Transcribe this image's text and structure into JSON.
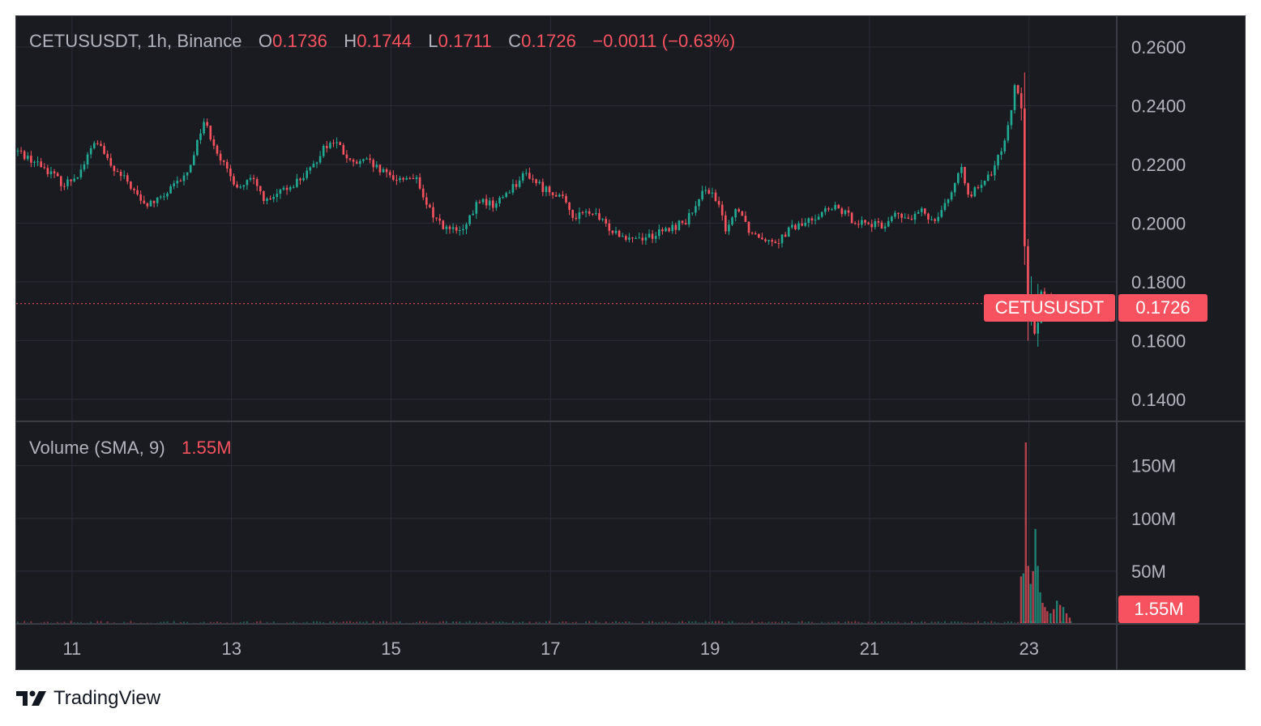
{
  "legend": {
    "symbol": "CETUSUSDT, 1h, Binance",
    "open_label": "O",
    "open_value": "0.1736",
    "high_label": "H",
    "high_value": "0.1744",
    "low_label": "L",
    "low_value": "0.1711",
    "close_label": "C",
    "close_value": "0.1726",
    "change": "−0.0011 (−0.63%)"
  },
  "volume_legend": {
    "label": "Volume (SMA, 9)",
    "value": "1.55M"
  },
  "tags": {
    "symbol": "CETUSUSDT",
    "price": "0.1726",
    "volume": "1.55M"
  },
  "footer": {
    "brand": "TradingView",
    "logo_icon": "tradingview-logo-icon"
  },
  "colors": {
    "background": "#1a1b20",
    "up": "#22ab94",
    "down": "#f7525f",
    "grid": "#2a2e39",
    "axis_text": "#b2b5be"
  },
  "chart_data": {
    "type": "candlestick",
    "symbol": "CETUSUSDT",
    "interval": "1h",
    "exchange": "Binance",
    "x_tick_labels": [
      "11",
      "13",
      "15",
      "17",
      "19",
      "21",
      "23"
    ],
    "y_tick_labels": [
      "0.2600",
      "0.2400",
      "0.2200",
      "0.2000",
      "0.1800",
      "0.1600",
      "0.1400"
    ],
    "y_ticks": [
      0.26,
      0.24,
      0.22,
      0.2,
      0.18,
      0.16,
      0.14
    ],
    "ylim": [
      0.1325,
      0.2705
    ],
    "xlim_days": [
      10.3,
      24.1
    ],
    "current_price": 0.1726,
    "close_path": [
      [
        10.32,
        0.2245
      ],
      [
        10.5,
        0.2215
      ],
      [
        10.7,
        0.218
      ],
      [
        10.9,
        0.213
      ],
      [
        11.1,
        0.2175
      ],
      [
        11.3,
        0.2285
      ],
      [
        11.5,
        0.2185
      ],
      [
        11.7,
        0.214
      ],
      [
        11.9,
        0.206
      ],
      [
        12.1,
        0.208
      ],
      [
        12.3,
        0.213
      ],
      [
        12.45,
        0.217
      ],
      [
        12.55,
        0.226
      ],
      [
        12.65,
        0.235
      ],
      [
        12.8,
        0.226
      ],
      [
        12.95,
        0.217
      ],
      [
        13.1,
        0.212
      ],
      [
        13.25,
        0.215
      ],
      [
        13.45,
        0.207
      ],
      [
        13.65,
        0.211
      ],
      [
        13.85,
        0.215
      ],
      [
        14.0,
        0.218
      ],
      [
        14.15,
        0.226
      ],
      [
        14.3,
        0.228
      ],
      [
        14.5,
        0.22
      ],
      [
        14.7,
        0.221
      ],
      [
        14.9,
        0.217
      ],
      [
        15.1,
        0.215
      ],
      [
        15.3,
        0.216
      ],
      [
        15.4,
        0.208
      ],
      [
        15.55,
        0.202
      ],
      [
        15.7,
        0.198
      ],
      [
        15.9,
        0.197
      ],
      [
        16.0,
        0.202
      ],
      [
        16.1,
        0.208
      ],
      [
        16.3,
        0.206
      ],
      [
        16.5,
        0.212
      ],
      [
        16.7,
        0.217
      ],
      [
        16.9,
        0.212
      ],
      [
        17.1,
        0.21
      ],
      [
        17.3,
        0.202
      ],
      [
        17.5,
        0.204
      ],
      [
        17.7,
        0.199
      ],
      [
        17.9,
        0.196
      ],
      [
        18.1,
        0.195
      ],
      [
        18.3,
        0.196
      ],
      [
        18.5,
        0.198
      ],
      [
        18.7,
        0.201
      ],
      [
        18.85,
        0.206
      ],
      [
        18.95,
        0.213
      ],
      [
        19.1,
        0.206
      ],
      [
        19.2,
        0.198
      ],
      [
        19.35,
        0.206
      ],
      [
        19.5,
        0.197
      ],
      [
        19.7,
        0.195
      ],
      [
        19.85,
        0.194
      ],
      [
        20.0,
        0.198
      ],
      [
        20.2,
        0.2
      ],
      [
        20.4,
        0.204
      ],
      [
        20.6,
        0.205
      ],
      [
        20.8,
        0.201
      ],
      [
        21.0,
        0.2
      ],
      [
        21.15,
        0.1985
      ],
      [
        21.3,
        0.203
      ],
      [
        21.5,
        0.201
      ],
      [
        21.65,
        0.204
      ],
      [
        21.8,
        0.201
      ],
      [
        21.95,
        0.207
      ],
      [
        22.05,
        0.212
      ],
      [
        22.15,
        0.218
      ],
      [
        22.25,
        0.21
      ],
      [
        22.4,
        0.212
      ],
      [
        22.55,
        0.218
      ],
      [
        22.65,
        0.225
      ],
      [
        22.75,
        0.235
      ],
      [
        22.82,
        0.246
      ],
      [
        22.9,
        0.245
      ],
      [
        22.95,
        0.18
      ],
      [
        22.98,
        0.16
      ],
      [
        23.0,
        0.18
      ],
      [
        23.05,
        0.162
      ],
      [
        23.1,
        0.17
      ],
      [
        23.15,
        0.178
      ],
      [
        23.2,
        0.175
      ],
      [
        23.3,
        0.173
      ],
      [
        23.4,
        0.168
      ],
      [
        23.5,
        0.17
      ],
      [
        23.55,
        0.1726
      ]
    ],
    "volume": {
      "y_tick_labels": [
        "150M",
        "100M",
        "50M"
      ],
      "y_ticks": [
        150,
        100,
        50
      ],
      "unit": "M",
      "sma_9": 1.55,
      "spikes": [
        [
          22.9,
          45,
          "down"
        ],
        [
          22.93,
          48,
          "up"
        ],
        [
          22.96,
          172,
          "down"
        ],
        [
          22.99,
          55,
          "down"
        ],
        [
          23.02,
          38,
          "up"
        ],
        [
          23.05,
          50,
          "down"
        ],
        [
          23.08,
          90,
          "up"
        ],
        [
          23.11,
          55,
          "up"
        ],
        [
          23.14,
          30,
          "up"
        ],
        [
          23.17,
          20,
          "down"
        ],
        [
          23.2,
          16,
          "down"
        ],
        [
          23.23,
          12,
          "down"
        ],
        [
          23.27,
          10,
          "up"
        ],
        [
          23.31,
          14,
          "down"
        ],
        [
          23.35,
          22,
          "up"
        ],
        [
          23.39,
          18,
          "down"
        ],
        [
          23.43,
          16,
          "up"
        ],
        [
          23.47,
          10,
          "down"
        ],
        [
          23.51,
          6,
          "down"
        ]
      ]
    }
  }
}
